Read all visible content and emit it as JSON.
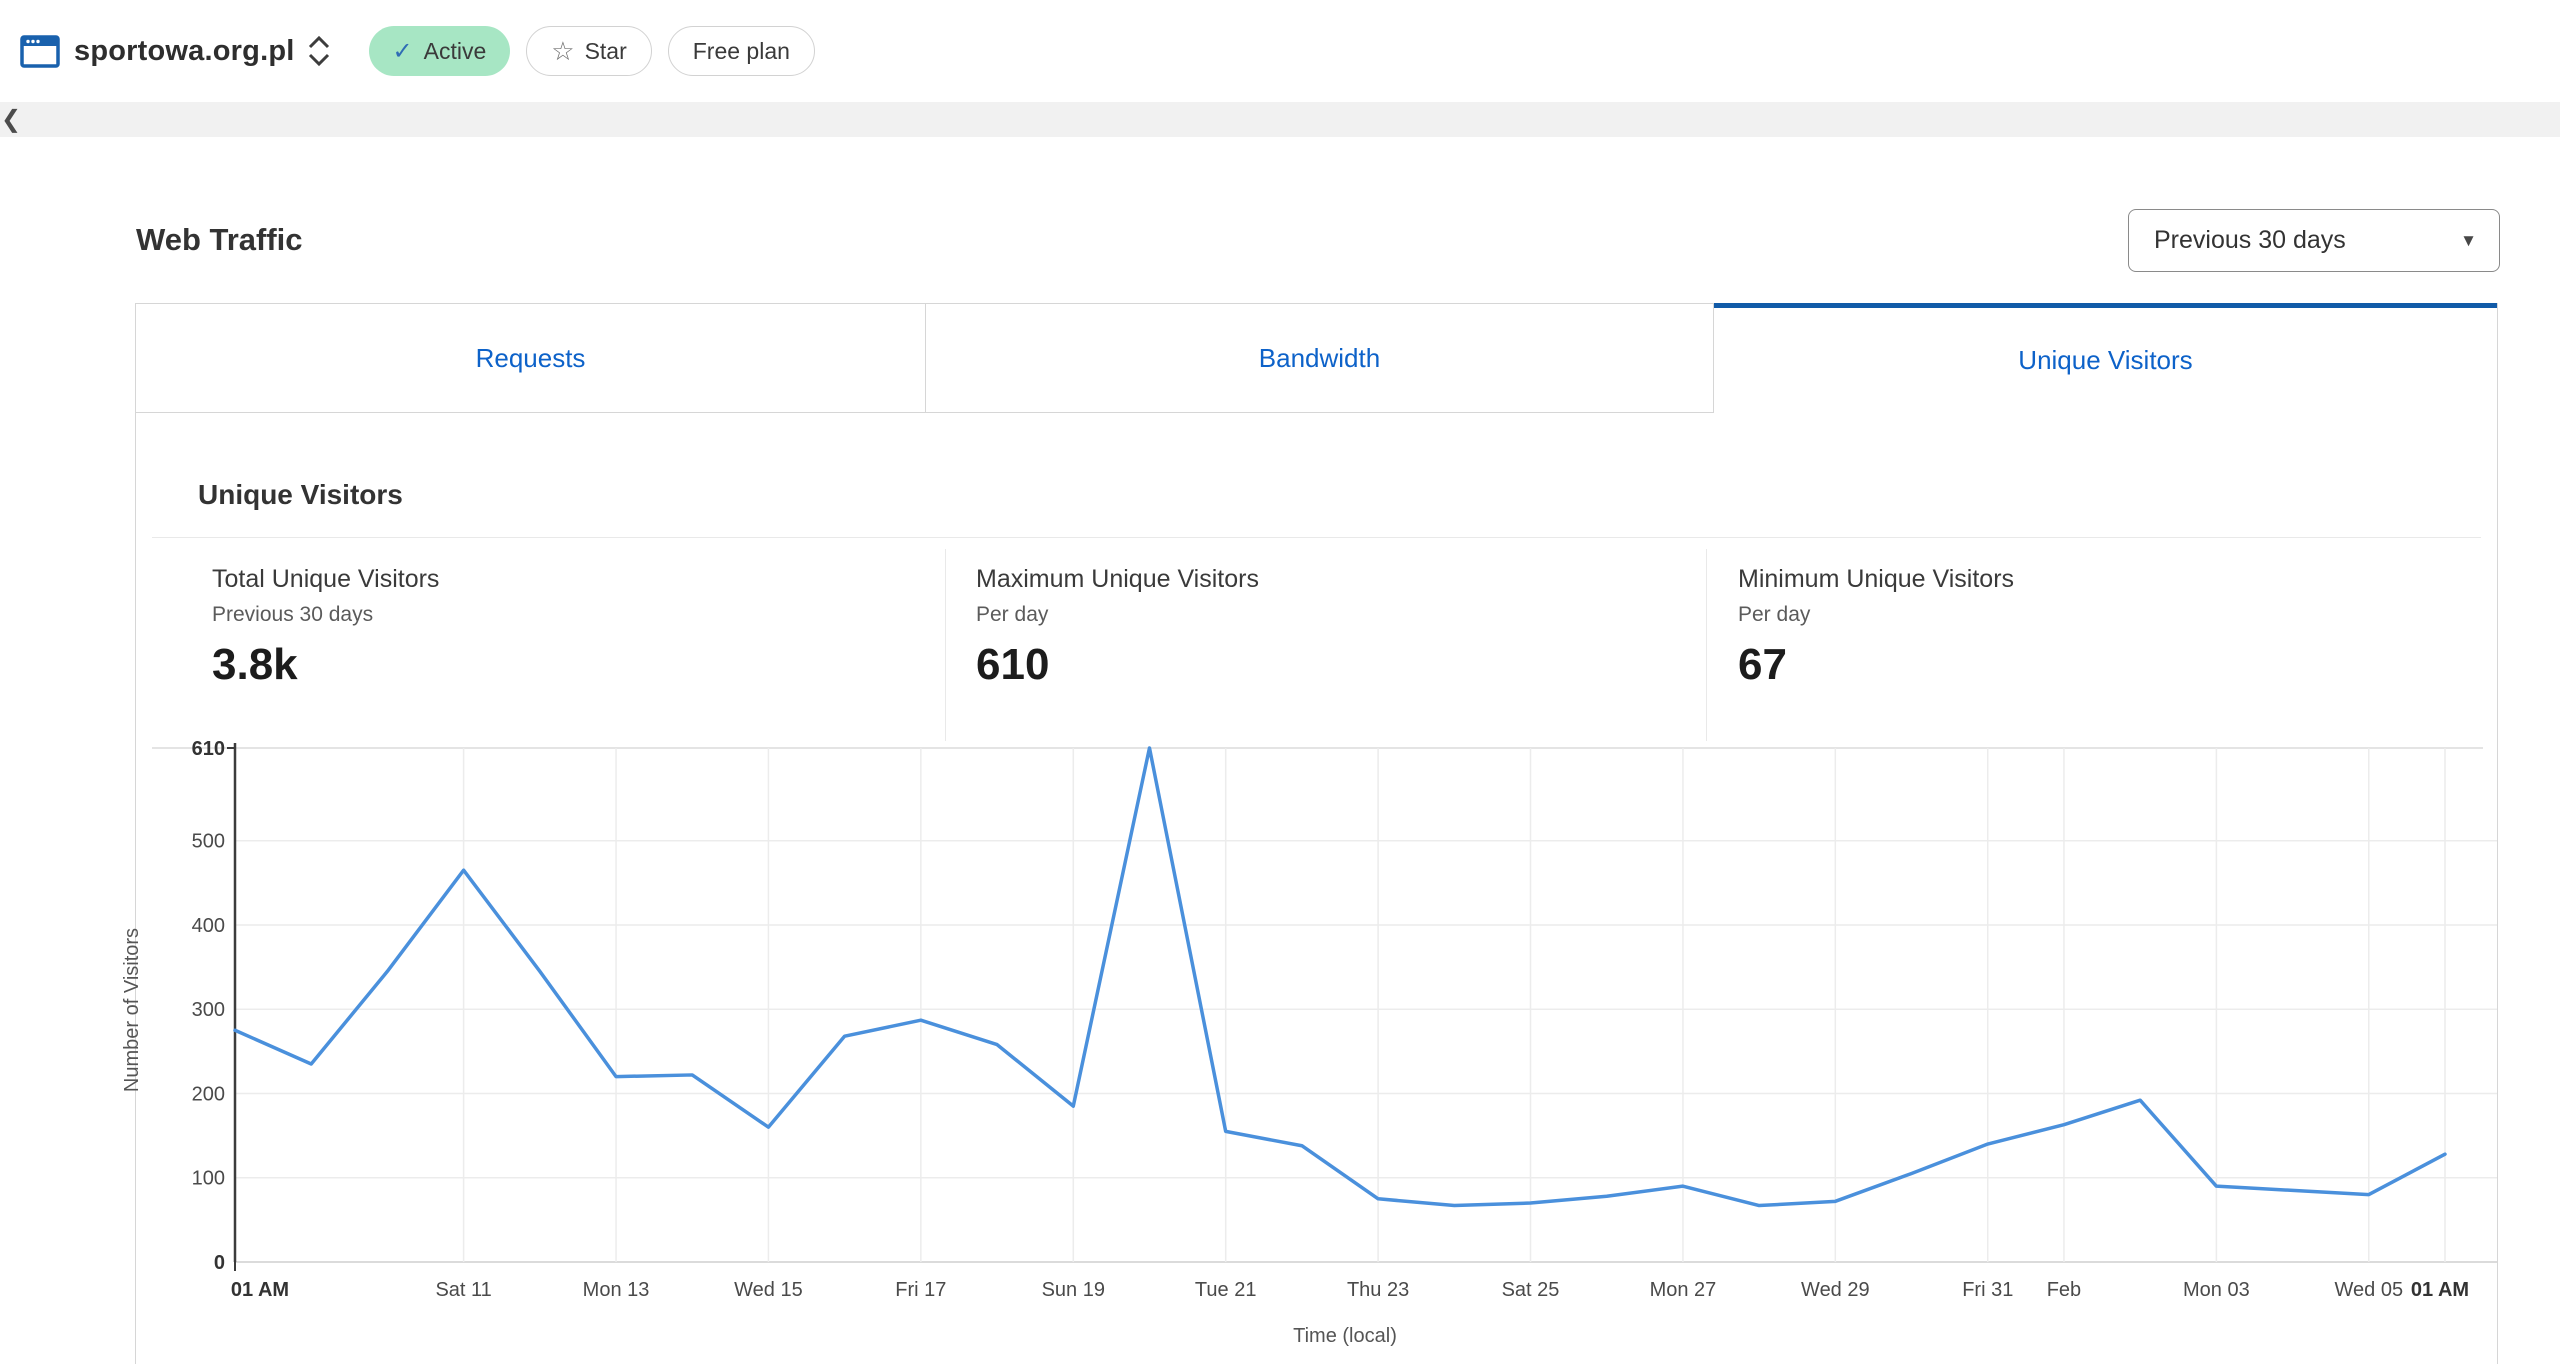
{
  "colors": {
    "accent_blue": "#0d62c9",
    "active_tab_border": "#115ba8",
    "line_blue": "#4a90dc",
    "badge_green_bg": "#a7e6c4",
    "site_icon_blue": "#1961ad"
  },
  "topbar": {
    "domain": "sportowa.org.pl",
    "status_badge": {
      "icon": "✓",
      "label": "Active"
    },
    "star_button": {
      "icon": "☆",
      "label": "Star"
    },
    "plan_badge": {
      "label": "Free plan"
    }
  },
  "nav_strip": {
    "back_icon": "❮"
  },
  "header": {
    "title": "Web Traffic",
    "range_dropdown": {
      "value": "Previous 30 days",
      "caret_icon": "▼"
    }
  },
  "tabs": [
    {
      "label": "Requests",
      "active": false
    },
    {
      "label": "Bandwidth",
      "active": false
    },
    {
      "label": "Unique Visitors",
      "active": true
    }
  ],
  "section": {
    "heading": "Unique Visitors",
    "stats": [
      {
        "label": "Total Unique Visitors",
        "sublabel": "Previous 30 days",
        "value": "3.8k"
      },
      {
        "label": "Maximum Unique Visitors",
        "sublabel": "Per day",
        "value": "610"
      },
      {
        "label": "Minimum Unique Visitors",
        "sublabel": "Per day",
        "value": "67"
      }
    ]
  },
  "chart_data": {
    "type": "line",
    "title": "Unique Visitors per day, previous 30 days",
    "xlabel": "Time (local)",
    "ylabel": "Number of Visitors",
    "ylim": [
      0,
      610
    ],
    "yticks": [
      610,
      500,
      400,
      300,
      200,
      100,
      0
    ],
    "grid": true,
    "legend": "none",
    "x": [
      "Jan 08",
      "Jan 09",
      "Jan 10",
      "Jan 11",
      "Jan 12",
      "Jan 13",
      "Jan 14",
      "Jan 15",
      "Jan 16",
      "Jan 17",
      "Jan 18",
      "Jan 19",
      "Jan 20",
      "Jan 21",
      "Jan 22",
      "Jan 23",
      "Jan 24",
      "Jan 25",
      "Jan 26",
      "Jan 27",
      "Jan 28",
      "Jan 29",
      "Jan 30",
      "Jan 31",
      "Feb 01",
      "Feb 02",
      "Feb 03",
      "Feb 04",
      "Feb 05",
      "Feb 06"
    ],
    "series": [
      {
        "name": "Unique Visitors",
        "color": "#4a90dc",
        "values": [
          275,
          235,
          345,
          465,
          345,
          220,
          222,
          160,
          268,
          287,
          258,
          185,
          610,
          155,
          138,
          75,
          67,
          70,
          78,
          90,
          67,
          72,
          105,
          140,
          163,
          192,
          90,
          85,
          80,
          128
        ]
      }
    ],
    "xticks": [
      {
        "index": 0,
        "label": "01 AM",
        "bold": true
      },
      {
        "index": 3,
        "label": "Sat 11"
      },
      {
        "index": 5,
        "label": "Mon 13"
      },
      {
        "index": 7,
        "label": "Wed 15"
      },
      {
        "index": 9,
        "label": "Fri 17"
      },
      {
        "index": 11,
        "label": "Sun 19"
      },
      {
        "index": 13,
        "label": "Tue 21"
      },
      {
        "index": 15,
        "label": "Thu 23"
      },
      {
        "index": 17,
        "label": "Sat 25"
      },
      {
        "index": 19,
        "label": "Mon 27"
      },
      {
        "index": 21,
        "label": "Wed 29"
      },
      {
        "index": 23,
        "label": "Fri 31"
      },
      {
        "index": 24,
        "label": "Feb"
      },
      {
        "index": 26,
        "label": "Mon 03"
      },
      {
        "index": 28,
        "label": "Wed 05"
      },
      {
        "index": 29,
        "label": "01 AM",
        "bold": true
      }
    ]
  }
}
